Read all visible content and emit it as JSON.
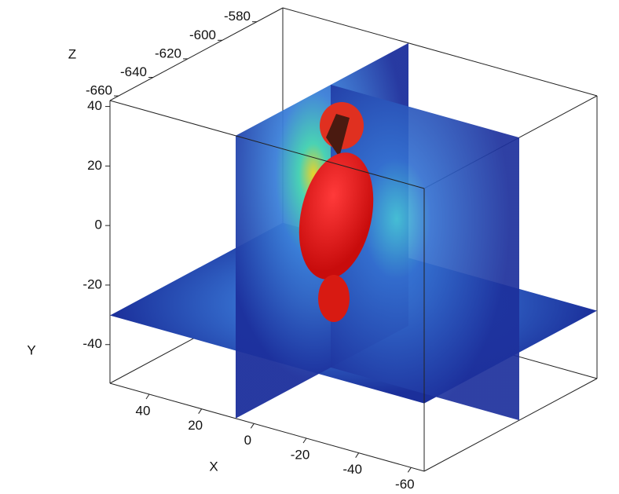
{
  "chart_data": {
    "type": "volume-slices",
    "x_label": "X",
    "y_label": "Y",
    "z_label": "Z",
    "xlim": [
      55,
      -65
    ],
    "xticks": [
      40,
      20,
      0,
      -20,
      -40,
      -60
    ],
    "ylim": [
      -53,
      42
    ],
    "yticks": [
      40,
      20,
      0,
      -20,
      -40
    ],
    "zlim": [
      -665,
      -565
    ],
    "zticks": [
      -660,
      -640,
      -620,
      -600,
      -580
    ]
  }
}
